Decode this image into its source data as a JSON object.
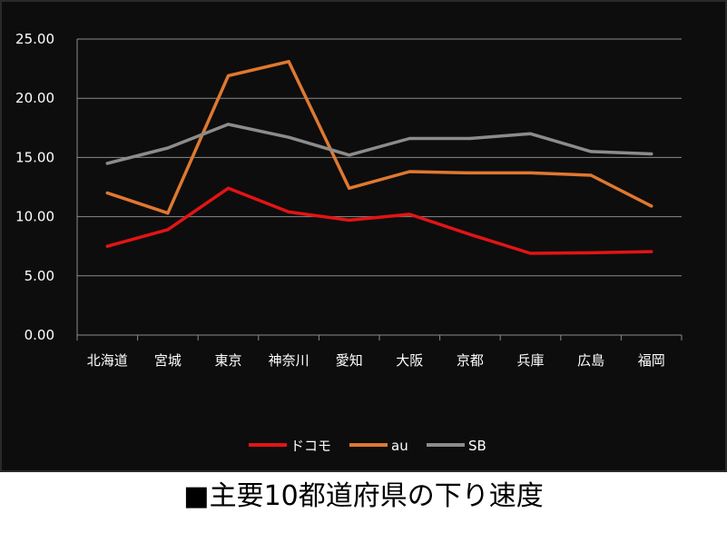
{
  "caption": "■主要10都道府県の下り速度",
  "chart_data": {
    "type": "line",
    "categories": [
      "北海道",
      "宮城",
      "東京",
      "神奈川",
      "愛知",
      "大阪",
      "京都",
      "兵庫",
      "広島",
      "福岡"
    ],
    "series": [
      {
        "name": "ドコモ",
        "color": "#e31414",
        "values": [
          7.5,
          8.9,
          12.4,
          10.4,
          9.7,
          10.2,
          8.5,
          6.9,
          6.95,
          7.05
        ]
      },
      {
        "name": "au",
        "color": "#e07830",
        "values": [
          12.0,
          10.3,
          21.9,
          23.1,
          12.4,
          13.8,
          13.7,
          13.7,
          13.5,
          10.9
        ]
      },
      {
        "name": "SB",
        "color": "#8c8c8c",
        "values": [
          14.5,
          15.8,
          17.8,
          16.7,
          15.2,
          16.6,
          16.6,
          17.0,
          15.5,
          15.3
        ]
      }
    ],
    "yticks": [
      "0.00",
      "5.00",
      "10.00",
      "15.00",
      "20.00",
      "25.00"
    ],
    "ylim": [
      0,
      25
    ],
    "grid": true,
    "legend": "bottom",
    "background": "#0d0d0d",
    "grid_color": "#8a8a8a"
  }
}
